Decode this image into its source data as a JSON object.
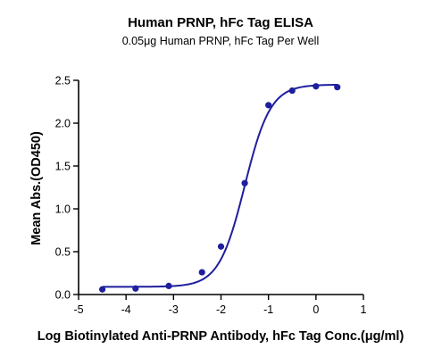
{
  "chart_data": {
    "type": "scatter",
    "title": "Human PRNP, hFc Tag ELISA",
    "subtitle": "0.05μg Human PRNP, hFc Tag Per Well",
    "xlabel": "Log Biotinylated Anti-PRNP Antibody, hFc Tag Conc.(μg/ml)",
    "ylabel": "Mean Abs.(OD450)",
    "xlim": [
      -5,
      1
    ],
    "ylim": [
      0,
      2.5
    ],
    "x_ticks": [
      "-5",
      "-4",
      "-3",
      "-2",
      "-1",
      "0",
      "1"
    ],
    "y_ticks": [
      "0.0",
      "0.5",
      "1.0",
      "1.5",
      "2.0",
      "2.5"
    ],
    "grid": false,
    "series": [
      {
        "points": [
          {
            "x": -4.5,
            "y": 0.06
          },
          {
            "x": -3.8,
            "y": 0.07
          },
          {
            "x": -3.1,
            "y": 0.1
          },
          {
            "x": -2.4,
            "y": 0.26
          },
          {
            "x": -2.0,
            "y": 0.56
          },
          {
            "x": -1.5,
            "y": 1.3
          },
          {
            "x": -1.0,
            "y": 2.21
          },
          {
            "x": -0.5,
            "y": 2.38
          },
          {
            "x": 0.0,
            "y": 2.43
          },
          {
            "x": 0.45,
            "y": 2.42
          }
        ],
        "fit": {
          "model": "4PL",
          "bottom": 0.09,
          "top": 2.45,
          "logEC50": -1.5,
          "hill": 1.6
        }
      }
    ],
    "colors": {
      "series": "#1f1f9e",
      "axis": "#000000"
    }
  }
}
